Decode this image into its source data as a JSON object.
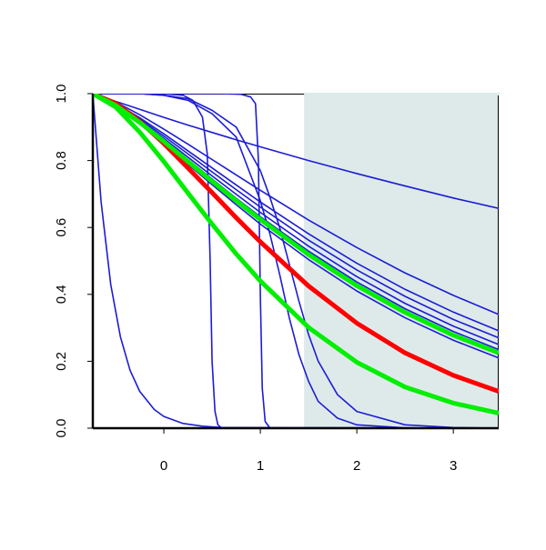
{
  "chart_data": {
    "type": "line",
    "xlim": [
      -0.736,
      3.47
    ],
    "ylim": [
      0,
      1
    ],
    "xticks": [
      0,
      1,
      2,
      3
    ],
    "yticks": [
      {
        "value": 0,
        "label": "0.0"
      },
      {
        "value": 0.2,
        "label": "0.2"
      },
      {
        "value": 0.4,
        "label": "0.4"
      },
      {
        "value": 0.6,
        "label": "0.6"
      },
      {
        "value": 0.8,
        "label": "0.8"
      },
      {
        "value": 1,
        "label": "1.0"
      }
    ],
    "shaded_x": [
      1.453,
      3.47
    ],
    "shade_color": "#deeaea",
    "series": [
      {
        "color": "#1c1cd6",
        "width": 1.6,
        "x": [
          -0.736,
          -0.65,
          -0.55,
          -0.45,
          -0.35,
          -0.25,
          -0.1,
          0,
          0.2,
          0.4,
          0.6,
          3.47
        ],
        "values": [
          1,
          0.676,
          0.429,
          0.273,
          0.173,
          0.11,
          0.056,
          0.035,
          0.014,
          0.006,
          0.002,
          0
        ]
      },
      {
        "color": "#1c1cd6",
        "width": 1.6,
        "x": [
          -0.736,
          0,
          0.2,
          0.3,
          0.4,
          0.45,
          0.48,
          0.5,
          0.53,
          0.56,
          0.6,
          3.47
        ],
        "values": [
          1,
          1,
          0.995,
          0.98,
          0.93,
          0.82,
          0.5,
          0.2,
          0.05,
          0.01,
          0,
          0
        ]
      },
      {
        "color": "#1c1cd6",
        "width": 1.6,
        "x": [
          -0.736,
          0.6,
          0.8,
          0.9,
          0.95,
          0.98,
          1,
          1.02,
          1.05,
          1.1,
          3.47
        ],
        "values": [
          1,
          1,
          0.998,
          0.99,
          0.97,
          0.8,
          0.4,
          0.12,
          0.02,
          0,
          0
        ]
      },
      {
        "color": "#1c1cd6",
        "width": 1.6,
        "x": [
          -0.736,
          -0.25,
          0,
          0.25,
          0.5,
          0.75,
          1,
          1.1,
          1.2,
          1.3,
          1.4,
          1.5,
          1.6,
          1.8,
          2,
          2.5,
          3,
          3.47
        ],
        "values": [
          1,
          1,
          0.995,
          0.98,
          0.94,
          0.87,
          0.68,
          0.58,
          0.46,
          0.33,
          0.22,
          0.14,
          0.08,
          0.03,
          0.01,
          0.001,
          0,
          0
        ]
      },
      {
        "color": "#1c1cd6",
        "width": 1.6,
        "x": [
          -0.736,
          -0.25,
          0,
          0.25,
          0.5,
          0.75,
          1,
          1.1,
          1.2,
          1.3,
          1.4,
          1.5,
          1.6,
          1.8,
          2,
          2.5,
          3,
          3.47
        ],
        "values": [
          1,
          1,
          0.995,
          0.985,
          0.95,
          0.9,
          0.77,
          0.69,
          0.6,
          0.49,
          0.38,
          0.28,
          0.2,
          0.1,
          0.05,
          0.01,
          0.002,
          0
        ]
      },
      {
        "color": "#1c1cd6",
        "width": 1.6,
        "x": [
          -0.736,
          -0.5,
          -0.25,
          0,
          0.25,
          0.5,
          0.75,
          1,
          1.5,
          2,
          2.5,
          3,
          3.47
        ],
        "values": [
          1,
          0.977,
          0.953,
          0.929,
          0.906,
          0.884,
          0.862,
          0.841,
          0.8,
          0.761,
          0.724,
          0.688,
          0.657
        ]
      },
      {
        "color": "#1c1cd6",
        "width": 1.6,
        "x": [
          -0.736,
          -0.5,
          -0.25,
          0,
          0.25,
          0.5,
          0.75,
          1,
          1.5,
          2,
          2.5,
          3,
          3.47
        ],
        "values": [
          1,
          0.975,
          0.937,
          0.894,
          0.849,
          0.803,
          0.757,
          0.711,
          0.622,
          0.54,
          0.464,
          0.397,
          0.34
        ]
      },
      {
        "color": "#1c1cd6",
        "width": 1.6,
        "x": [
          -0.736,
          -0.5,
          -0.25,
          0,
          0.25,
          0.5,
          0.75,
          1,
          1.5,
          2,
          2.5,
          3,
          3.47
        ],
        "values": [
          1,
          0.971,
          0.928,
          0.88,
          0.829,
          0.778,
          0.727,
          0.676,
          0.581,
          0.493,
          0.415,
          0.347,
          0.291
        ]
      },
      {
        "color": "#1c1cd6",
        "width": 1.6,
        "x": [
          -0.736,
          -0.5,
          -0.25,
          0,
          0.25,
          0.5,
          0.75,
          1,
          1.5,
          2,
          2.5,
          3,
          3.47
        ],
        "values": [
          1,
          0.969,
          0.924,
          0.873,
          0.82,
          0.766,
          0.713,
          0.661,
          0.562,
          0.473,
          0.394,
          0.325,
          0.27
        ]
      },
      {
        "color": "#1c1cd6",
        "width": 1.6,
        "x": [
          -0.736,
          -0.5,
          -0.25,
          0,
          0.25,
          0.5,
          0.75,
          1,
          1.5,
          2,
          2.5,
          3,
          3.47
        ],
        "values": [
          1,
          0.968,
          0.92,
          0.866,
          0.81,
          0.754,
          0.699,
          0.645,
          0.544,
          0.453,
          0.373,
          0.305,
          0.25
        ]
      },
      {
        "color": "#1c1cd6",
        "width": 1.6,
        "x": [
          -0.736,
          -0.5,
          -0.25,
          0,
          0.25,
          0.5,
          0.75,
          1,
          1.5,
          2,
          2.5,
          3,
          3.47
        ],
        "values": [
          1,
          0.966,
          0.916,
          0.86,
          0.803,
          0.745,
          0.687,
          0.632,
          0.529,
          0.437,
          0.357,
          0.289,
          0.235
        ]
      },
      {
        "color": "#1c1cd6",
        "width": 1.6,
        "x": [
          -0.736,
          -0.5,
          -0.25,
          0,
          0.25,
          0.5,
          0.75,
          1,
          1.5,
          2,
          2.5,
          3,
          3.47
        ],
        "values": [
          1,
          0.964,
          0.91,
          0.851,
          0.789,
          0.728,
          0.668,
          0.61,
          0.504,
          0.41,
          0.33,
          0.263,
          0.21
        ]
      },
      {
        "color": "#ff0000",
        "width": 5,
        "x": [
          -0.736,
          -0.5,
          -0.25,
          0,
          0.25,
          0.5,
          0.75,
          1,
          1.5,
          2,
          2.5,
          3,
          3.47
        ],
        "values": [
          1,
          0.971,
          0.917,
          0.851,
          0.778,
          0.704,
          0.629,
          0.557,
          0.425,
          0.314,
          0.225,
          0.158,
          0.11
        ]
      },
      {
        "color": "#00ee00",
        "width": 5,
        "x": [
          -0.736,
          -0.5,
          -0.25,
          0,
          0.25,
          0.5,
          0.75,
          1,
          1.5,
          2,
          2.5,
          3,
          3.47
        ],
        "values": [
          1,
          0.965,
          0.914,
          0.857,
          0.797,
          0.738,
          0.68,
          0.624,
          0.519,
          0.426,
          0.346,
          0.278,
          0.225
        ]
      },
      {
        "color": "#00ee00",
        "width": 5,
        "x": [
          -0.736,
          -0.5,
          -0.25,
          0,
          0.25,
          0.5,
          0.75,
          1,
          1.5,
          2,
          2.5,
          3,
          3.47
        ],
        "values": [
          1,
          0.96,
          0.885,
          0.797,
          0.703,
          0.61,
          0.521,
          0.44,
          0.301,
          0.197,
          0.123,
          0.075,
          0.045
        ]
      }
    ]
  }
}
